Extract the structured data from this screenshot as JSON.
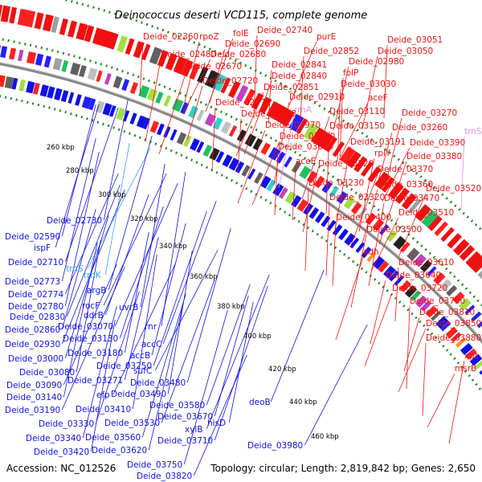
{
  "title": "Deinococcus deserti VCD115, complete genome",
  "footer": {
    "accession": "Accession: NC_012526",
    "topology": "Topology: circular; Length: 2,819,842 bp; Genes: 2,650"
  },
  "colors": {
    "forward": "#f01010",
    "reverse": "#1010e8",
    "rna": "#e090e0",
    "trna_reverse": "#3aa0ff",
    "backbone": "#888888",
    "dots": "#2a8a2a"
  },
  "ticks": [
    "260 kbp",
    "280 kbp",
    "300 kbp",
    "320 kbp",
    "340 kbp",
    "360 kbp",
    "380 kbp",
    "400 kbp",
    "420 kbp",
    "440 kbp",
    "460 kbp"
  ],
  "right_labels": [
    {
      "text": "Deide_02360",
      "type": "forward"
    },
    {
      "text": "rpoZ",
      "type": "forward"
    },
    {
      "text": "folE",
      "type": "forward"
    },
    {
      "text": "Deide_02740",
      "type": "forward"
    },
    {
      "text": "Deide_02690",
      "type": "forward"
    },
    {
      "text": "purE",
      "type": "forward"
    },
    {
      "text": "Deide_03051",
      "type": "forward"
    },
    {
      "text": "Deide_02480",
      "type": "forward"
    },
    {
      "text": "Deide_02680",
      "type": "forward"
    },
    {
      "text": "Deide_02852",
      "type": "forward"
    },
    {
      "text": "Deide_03050",
      "type": "forward"
    },
    {
      "text": "Deide_02670",
      "type": "forward"
    },
    {
      "text": "Deide_02841",
      "type": "forward"
    },
    {
      "text": "Deide_02980",
      "type": "forward"
    },
    {
      "text": "Deide_02840",
      "type": "forward"
    },
    {
      "text": "folP",
      "type": "forward"
    },
    {
      "text": "Deide_02720",
      "type": "forward"
    },
    {
      "text": "Deide_02851",
      "type": "forward"
    },
    {
      "text": "Deide_03030",
      "type": "forward"
    },
    {
      "text": "Deide_02910",
      "type": "forward"
    },
    {
      "text": "aceF",
      "type": "forward"
    },
    {
      "text": "Deide_02771",
      "type": "forward"
    },
    {
      "text": "rrnA",
      "type": "rna"
    },
    {
      "text": "Deide_03110",
      "type": "forward"
    },
    {
      "text": "Deide_02853",
      "type": "forward"
    },
    {
      "text": "Deide_03270",
      "type": "forward"
    },
    {
      "text": "Deide_02970",
      "type": "forward"
    },
    {
      "text": "Deide_03150",
      "type": "forward"
    },
    {
      "text": "Deide_03260",
      "type": "forward"
    },
    {
      "text": "Deide_03020",
      "type": "forward"
    },
    {
      "text": "trnS",
      "type": "rna"
    },
    {
      "text": "Deide_03191",
      "type": "forward"
    },
    {
      "text": "Deide_03390",
      "type": "forward"
    },
    {
      "text": "Deide_03060",
      "type": "forward"
    },
    {
      "text": "rplY",
      "type": "forward"
    },
    {
      "text": "Deide_03380",
      "type": "forward"
    },
    {
      "text": "aceE",
      "type": "forward"
    },
    {
      "text": "Deide_03220",
      "type": "forward"
    },
    {
      "text": "Deide_03370",
      "type": "forward"
    },
    {
      "text": "Deide_03230",
      "type": "forward"
    },
    {
      "text": "Deide_03360",
      "type": "forward"
    },
    {
      "text": "Deide_03520",
      "type": "forward"
    },
    {
      "text": "Deide_03320",
      "type": "forward"
    },
    {
      "text": "Deide_03470",
      "type": "forward"
    },
    {
      "text": "Deide_03510",
      "type": "forward"
    },
    {
      "text": "Deide_03400",
      "type": "forward"
    },
    {
      "text": "Deide_03500",
      "type": "forward"
    },
    {
      "text": "adh",
      "type": "forward"
    },
    {
      "text": "Deide_03610",
      "type": "forward"
    },
    {
      "text": "Deide_03640",
      "type": "forward"
    },
    {
      "text": "Deide_03720",
      "type": "forward"
    },
    {
      "text": "Deide_03790",
      "type": "forward"
    },
    {
      "text": "Deide_03810",
      "type": "forward"
    },
    {
      "text": "Deide_03850",
      "type": "forward"
    },
    {
      "text": "Deide_03880",
      "type": "forward"
    },
    {
      "text": "xpt",
      "type": "forward"
    },
    {
      "text": "msrB",
      "type": "forward"
    }
  ],
  "left_labels": [
    {
      "text": "Deide_02730",
      "type": "reverse"
    },
    {
      "text": "Deide_02590",
      "type": "reverse"
    },
    {
      "text": "ispF",
      "type": "reverse"
    },
    {
      "text": "Deide_02710",
      "type": "reverse"
    },
    {
      "text": "trnS",
      "type": "trna_reverse"
    },
    {
      "text": "trnK",
      "type": "trna_reverse"
    },
    {
      "text": "Deide_02773",
      "type": "reverse"
    },
    {
      "text": "argB",
      "type": "reverse"
    },
    {
      "text": "Deide_02774",
      "type": "reverse"
    },
    {
      "text": "rocF",
      "type": "reverse"
    },
    {
      "text": "uvrB",
      "type": "reverse"
    },
    {
      "text": "Deide_02780",
      "type": "reverse"
    },
    {
      "text": "ddrB",
      "type": "reverse"
    },
    {
      "text": "Deide_02830",
      "type": "reverse"
    },
    {
      "text": "Deide_03070",
      "type": "reverse"
    },
    {
      "text": "rnr",
      "type": "reverse"
    },
    {
      "text": "Deide_02860",
      "type": "reverse"
    },
    {
      "text": "Deide_03130",
      "type": "reverse"
    },
    {
      "text": "accC",
      "type": "reverse"
    },
    {
      "text": "Deide_02930",
      "type": "reverse"
    },
    {
      "text": "Deide_03180",
      "type": "reverse"
    },
    {
      "text": "accB",
      "type": "reverse"
    },
    {
      "text": "Deide_03000",
      "type": "reverse"
    },
    {
      "text": "Deide_03250",
      "type": "reverse"
    },
    {
      "text": "sufC",
      "type": "reverse"
    },
    {
      "text": "Deide_03080",
      "type": "reverse"
    },
    {
      "text": "Deide_03271",
      "type": "reverse"
    },
    {
      "text": "Deide_03480",
      "type": "reverse"
    },
    {
      "text": "Deide_03090",
      "type": "reverse"
    },
    {
      "text": "efp",
      "type": "reverse"
    },
    {
      "text": "Deide_03490",
      "type": "reverse"
    },
    {
      "text": "Deide_03140",
      "type": "reverse"
    },
    {
      "text": "Deide_03580",
      "type": "reverse"
    },
    {
      "text": "deoB",
      "type": "reverse"
    },
    {
      "text": "Deide_03190",
      "type": "reverse"
    },
    {
      "text": "Deide_03410",
      "type": "reverse"
    },
    {
      "text": "Deide_03670",
      "type": "reverse"
    },
    {
      "text": "Deide_03330",
      "type": "reverse"
    },
    {
      "text": "Deide_03530",
      "type": "reverse"
    },
    {
      "text": "xylB",
      "type": "reverse"
    },
    {
      "text": "hisD",
      "type": "reverse"
    },
    {
      "text": "Deide_03340",
      "type": "reverse"
    },
    {
      "text": "Deide_03560",
      "type": "reverse"
    },
    {
      "text": "Deide_03710",
      "type": "reverse"
    },
    {
      "text": "Deide_03980",
      "type": "reverse"
    },
    {
      "text": "Deide_03420",
      "type": "reverse"
    },
    {
      "text": "Deide_03620",
      "type": "reverse"
    },
    {
      "text": "Deide_03750",
      "type": "reverse"
    },
    {
      "text": "Deide_03820",
      "type": "reverse"
    }
  ]
}
